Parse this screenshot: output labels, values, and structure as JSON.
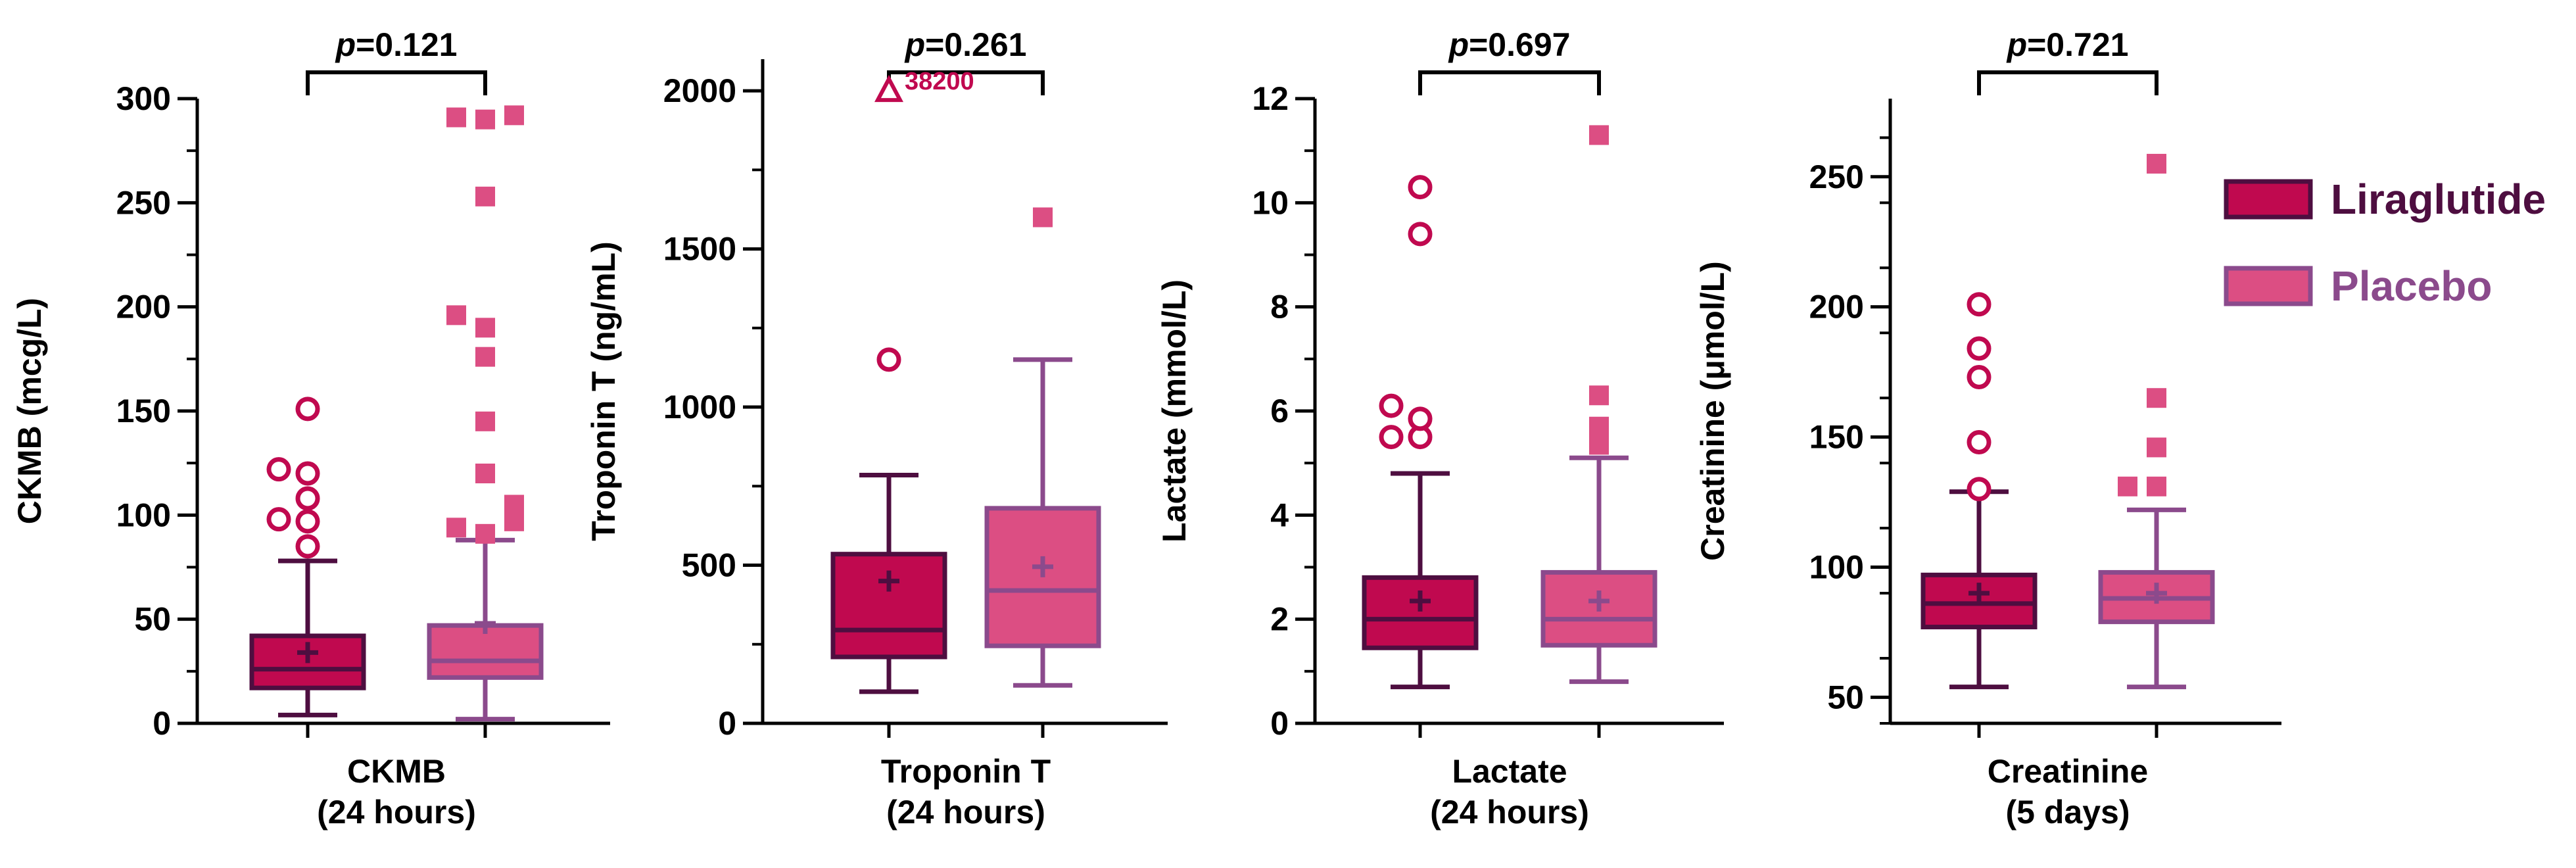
{
  "colors": {
    "liraglutide_fill": "#C0094F",
    "liraglutide_line": "#4E0E40",
    "placebo_fill": "#DC4E83",
    "placebo_line": "#8B4A8C",
    "axis": "#000000"
  },
  "legend": {
    "position": "right",
    "items": [
      {
        "name": "Liraglutide",
        "color": "#4E0E40"
      },
      {
        "name": "Placebo",
        "color": "#8B4A8C"
      }
    ]
  },
  "chart_data": [
    {
      "type": "box",
      "ylabel": "CKMB (mcg/L)",
      "xlabel_lines": [
        "CKMB",
        "(24 hours)"
      ],
      "ylim": [
        0,
        300
      ],
      "yticks": [
        0,
        50,
        100,
        150,
        200,
        250,
        300
      ],
      "minor_step": 25,
      "p_value": "0.121",
      "series": [
        {
          "name": "Liraglutide",
          "q1": 17,
          "median": 26,
          "q3": 42,
          "whisker_low": 4,
          "whisker_high": 78,
          "mean": 34,
          "outliers": [
            85,
            97,
            98,
            108,
            120,
            122,
            151
          ]
        },
        {
          "name": "Placebo",
          "q1": 22,
          "median": 30,
          "q3": 47,
          "whisker_low": 2,
          "whisker_high": 88,
          "mean": 48,
          "outliers": [
            91,
            94,
            97,
            100,
            105,
            120,
            145,
            176,
            190,
            196,
            253,
            290,
            291,
            292
          ]
        }
      ]
    },
    {
      "type": "box",
      "ylabel": "Troponin T (ng/mL)",
      "xlabel_lines": [
        "Troponin T",
        "(24 hours)"
      ],
      "ylim": [
        0,
        2100
      ],
      "yticks": [
        0,
        500,
        1000,
        1500,
        2000
      ],
      "minor_step": 250,
      "p_value": "0.261",
      "series": [
        {
          "name": "Liraglutide",
          "q1": 210,
          "median": 295,
          "q3": 535,
          "whisker_low": 100,
          "whisker_high": 785,
          "mean": 450,
          "outliers": [
            1150
          ],
          "offscale": {
            "value": 38200,
            "label": "38200"
          }
        },
        {
          "name": "Placebo",
          "q1": 245,
          "median": 420,
          "q3": 680,
          "whisker_low": 120,
          "whisker_high": 1150,
          "mean": 495,
          "outliers": [
            1600
          ]
        }
      ]
    },
    {
      "type": "box",
      "ylabel": "Lactate (mmol/L)",
      "xlabel_lines": [
        "Lactate",
        "(24 hours)"
      ],
      "ylim": [
        0,
        12
      ],
      "yticks": [
        0,
        2,
        4,
        6,
        8,
        10,
        12
      ],
      "minor_step": 1,
      "p_value": "0.697",
      "series": [
        {
          "name": "Liraglutide",
          "q1": 1.45,
          "median": 2.0,
          "q3": 2.8,
          "whisker_low": 0.7,
          "whisker_high": 4.8,
          "mean": 2.35,
          "outliers": [
            5.5,
            5.5,
            5.85,
            6.1,
            9.4,
            10.3
          ]
        },
        {
          "name": "Placebo",
          "q1": 1.5,
          "median": 2.0,
          "q3": 2.9,
          "whisker_low": 0.8,
          "whisker_high": 5.1,
          "mean": 2.35,
          "outliers": [
            5.35,
            5.7,
            6.3,
            11.3
          ]
        }
      ]
    },
    {
      "type": "box",
      "ylabel": "Creatinine (μmol/L)",
      "xlabel_lines": [
        "Creatinine",
        "(5 days)"
      ],
      "ylim": [
        40,
        280
      ],
      "yticks": [
        50,
        100,
        150,
        200,
        250
      ],
      "minor_step": 25,
      "p_value": "0.721",
      "series": [
        {
          "name": "Liraglutide",
          "q1": 77,
          "median": 86,
          "q3": 97,
          "whisker_low": 54,
          "whisker_high": 129,
          "mean": 90,
          "outliers": [
            130,
            148,
            173,
            184,
            201
          ]
        },
        {
          "name": "Placebo",
          "q1": 79,
          "median": 88,
          "q3": 98,
          "whisker_low": 54,
          "whisker_high": 122,
          "mean": 90,
          "outliers": [
            131,
            131,
            146,
            165,
            255
          ]
        }
      ]
    }
  ]
}
